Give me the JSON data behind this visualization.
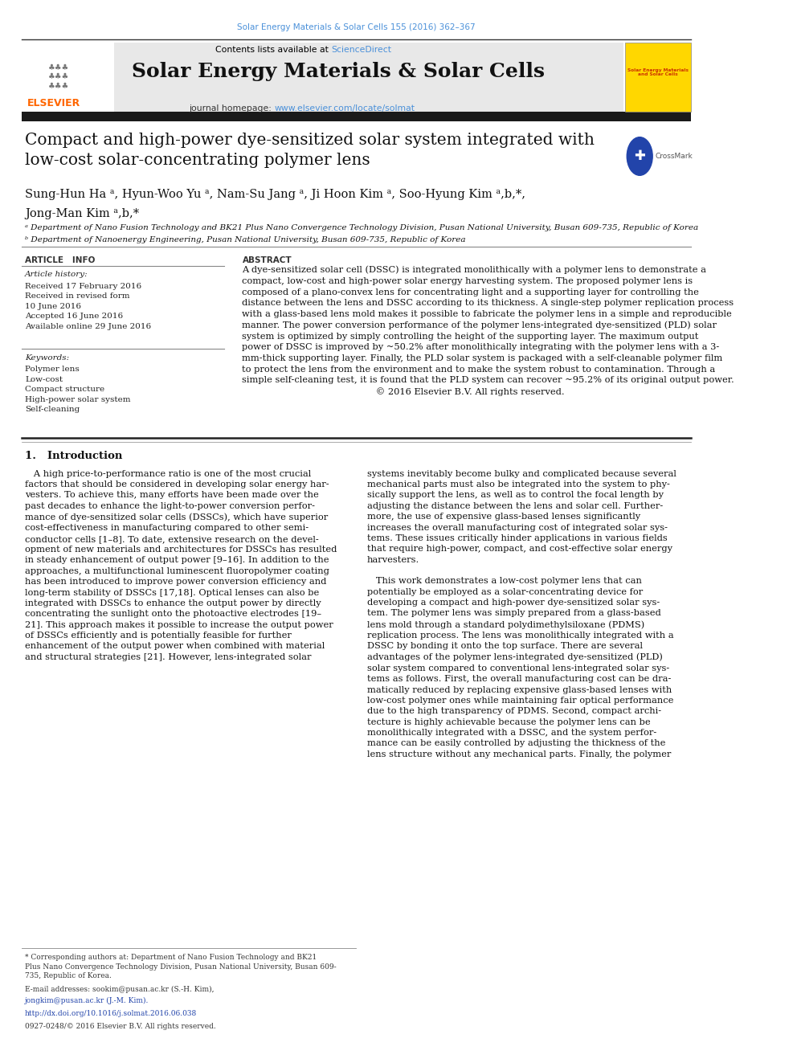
{
  "page_width": 9.92,
  "page_height": 13.23,
  "bg_color": "#ffffff",
  "journal_ref": "Solar Energy Materials & Solar Cells 155 (2016) 362–367",
  "journal_ref_color": "#4a90d9",
  "journal_name": "Solar Energy Materials & Solar Cells",
  "sciencedirect_color": "#4a90d9",
  "homepage_url_color": "#4a90d9",
  "header_bg": "#e8e8e8",
  "affil_a": "ᵃ Department of Nano Fusion Technology and BK21 Plus Nano Convergence Technology Division, Pusan National University, Busan 609-735, Republic of Korea",
  "affil_b": "ᵇ Department of Nanoenergy Engineering, Pusan National University, Busan 609-735, Republic of Korea",
  "black_bar_color": "#1a1a1a",
  "title_font_size": 14.5,
  "author_font_size": 10.5,
  "affil_font_size": 7.5,
  "abstract_font_size": 8.2,
  "body_font_size": 8.2,
  "header_font_size": 18
}
